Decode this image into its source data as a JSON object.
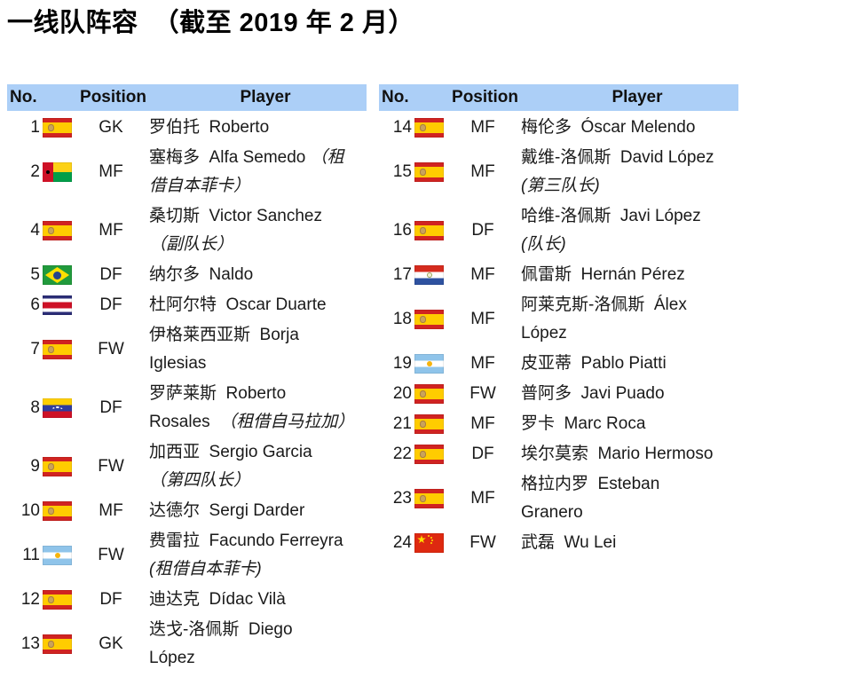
{
  "title": "一线队阵容  （截至 2019 年 2 月）",
  "header": {
    "no": "No.",
    "position": "Position",
    "player": "Player"
  },
  "colors": {
    "header_bg": "#ACCFF7",
    "text": "#1a1a1a"
  },
  "left_rows": [
    {
      "no": "1",
      "flag": "es",
      "flag_name": "spain-flag",
      "position": "GK",
      "name": "罗伯托  Roberto",
      "note": "",
      "note_block": false
    },
    {
      "no": "2",
      "flag": "gw",
      "flag_name": "guinea-bissau-flag",
      "position": "MF",
      "name": "塞梅多  Alfa Semedo ",
      "note": "（租\n借自本菲卡）",
      "note_block": false
    },
    {
      "no": "4",
      "flag": "es",
      "flag_name": "spain-flag",
      "position": "MF",
      "name": "桑切斯  Victor Sanchez",
      "note": "（副队长）",
      "note_block": true
    },
    {
      "no": "5",
      "flag": "br",
      "flag_name": "brazil-flag",
      "position": "DF",
      "name": "纳尔多  Naldo",
      "note": "",
      "note_block": false
    },
    {
      "no": "6",
      "flag": "cr",
      "flag_name": "costa-rica-flag",
      "position": "DF",
      "name": "杜阿尔特  Oscar Duarte",
      "note": "",
      "note_block": false
    },
    {
      "no": "7",
      "flag": "es",
      "flag_name": "spain-flag",
      "position": "FW",
      "name": "伊格莱西亚斯  Borja\nIglesias",
      "note": "",
      "note_block": false
    },
    {
      "no": "8",
      "flag": "ve",
      "flag_name": "venezuela-flag",
      "position": "DF",
      "name": "罗萨莱斯  Roberto\nRosales  ",
      "note": "（租借自马拉加）",
      "note_block": false
    },
    {
      "no": "9",
      "flag": "es",
      "flag_name": "spain-flag",
      "position": "FW",
      "name": "加西亚  Sergio Garcia",
      "note": "（第四队长）",
      "note_block": true
    },
    {
      "no": "10",
      "flag": "es",
      "flag_name": "spain-flag",
      "position": "MF",
      "name": "达德尔  Sergi Darder",
      "note": "",
      "note_block": false
    },
    {
      "no": "11",
      "flag": "ar",
      "flag_name": "argentina-flag",
      "position": "FW",
      "name": "费雷拉  Facundo Ferreyra",
      "note": "(租借自本菲卡)",
      "note_block": true
    },
    {
      "no": "12",
      "flag": "es",
      "flag_name": "spain-flag",
      "position": "DF",
      "name": "迪达克  Dídac Vilà",
      "note": "",
      "note_block": false
    },
    {
      "no": "13",
      "flag": "es",
      "flag_name": "spain-flag",
      "position": "GK",
      "name": "迭戈-洛佩斯  Diego\nLópez",
      "note": "",
      "note_block": false
    }
  ],
  "right_rows": [
    {
      "no": "14",
      "flag": "es",
      "flag_name": "spain-flag",
      "position": "MF",
      "name": "梅伦多  Óscar Melendo",
      "note": "",
      "note_block": false
    },
    {
      "no": "15",
      "flag": "es",
      "flag_name": "spain-flag",
      "position": "MF",
      "name": "戴维-洛佩斯  David López",
      "note": "(第三队长)",
      "note_block": true
    },
    {
      "no": "16",
      "flag": "es",
      "flag_name": "spain-flag",
      "position": "DF",
      "name": "哈维-洛佩斯  Javi López",
      "note": "(队长)",
      "note_block": true
    },
    {
      "no": "17",
      "flag": "py",
      "flag_name": "paraguay-flag",
      "position": "MF",
      "name": "佩雷斯  Hernán Pérez",
      "note": "",
      "note_block": false
    },
    {
      "no": "18",
      "flag": "es",
      "flag_name": "spain-flag",
      "position": "MF",
      "name": "阿莱克斯-洛佩斯  Álex\nLópez",
      "note": "",
      "note_block": false
    },
    {
      "no": "19",
      "flag": "ar",
      "flag_name": "argentina-flag",
      "position": "MF",
      "name": "皮亚蒂  Pablo Piatti",
      "note": "",
      "note_block": false
    },
    {
      "no": "20",
      "flag": "es",
      "flag_name": "spain-flag",
      "position": "FW",
      "name": "普阿多  Javi Puado",
      "note": "",
      "note_block": false
    },
    {
      "no": "21",
      "flag": "es",
      "flag_name": "spain-flag",
      "position": "MF",
      "name": "罗卡  Marc Roca",
      "note": "",
      "note_block": false
    },
    {
      "no": "22",
      "flag": "es",
      "flag_name": "spain-flag",
      "position": "DF",
      "name": "埃尔莫索  Mario Hermoso",
      "note": "",
      "note_block": false
    },
    {
      "no": "23",
      "flag": "es",
      "flag_name": "spain-flag",
      "position": "MF",
      "name": "格拉内罗  Esteban\nGranero",
      "note": "",
      "note_block": false
    },
    {
      "no": "24",
      "flag": "cn",
      "flag_name": "china-flag",
      "position": "FW",
      "name": "武磊  Wu Lei",
      "note": "",
      "note_block": false
    }
  ]
}
